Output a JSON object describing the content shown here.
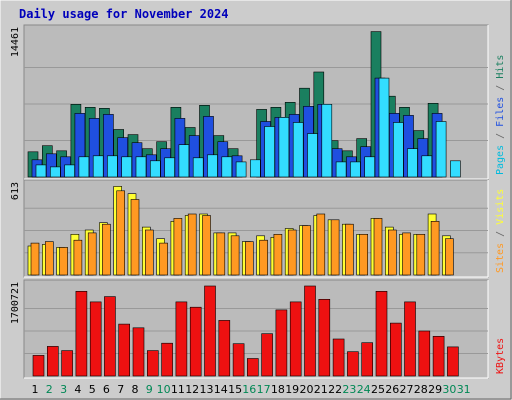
{
  "title": "Daily usage for November 2024",
  "colors": {
    "background": "#cccccc",
    "panel": "#bbbbbb",
    "hits": "#1a7f5f",
    "files": "#1f4fe0",
    "pages": "#33ddff",
    "visits": "#ffff33",
    "sites": "#ff9922",
    "kbytes": "#ee1111",
    "weekday_label": "#000000",
    "weekend_label": "#008855"
  },
  "chart_data": [
    {
      "type": "bar",
      "panel": "top",
      "max_label": "14461",
      "ylim": [
        0,
        14461
      ],
      "legend": [
        {
          "text": "Pages",
          "color": "#00bbdd"
        },
        {
          "text": "/",
          "color": "#666666"
        },
        {
          "text": "Files",
          "color": "#1f4fe0"
        },
        {
          "text": "/",
          "color": "#666666"
        },
        {
          "text": "Hits",
          "color": "#1a7f5f"
        }
      ],
      "categories": [
        "1",
        "2",
        "3",
        "4",
        "5",
        "6",
        "7",
        "8",
        "9",
        "10",
        "11",
        "12",
        "13",
        "14",
        "15",
        "16",
        "17",
        "18",
        "19",
        "20",
        "21",
        "22",
        "23",
        "24",
        "25",
        "26",
        "27",
        "28",
        "29",
        "30",
        "31"
      ],
      "weekend_days": [
        "2",
        "3",
        "9",
        "10",
        "16",
        "17",
        "23",
        "24",
        "30",
        "31"
      ],
      "series": [
        {
          "name": "Hits",
          "values": [
            2500,
            3100,
            2600,
            7200,
            6900,
            6800,
            4700,
            4200,
            2800,
            3500,
            6900,
            4900,
            7100,
            4100,
            2800,
            0,
            6700,
            6900,
            7400,
            8800,
            10400,
            3600,
            2600,
            3800,
            14400,
            8000,
            6900,
            4600,
            7300,
            0,
            0
          ]
        },
        {
          "name": "Files",
          "values": [
            1700,
            2300,
            2000,
            6300,
            5800,
            6200,
            3900,
            3400,
            2200,
            2800,
            5800,
            4100,
            6000,
            3500,
            2100,
            0,
            5500,
            5900,
            6200,
            7000,
            7200,
            2800,
            2000,
            3000,
            9800,
            6300,
            6100,
            3800,
            6300,
            0,
            0
          ]
        },
        {
          "name": "Pages",
          "values": [
            1200,
            1000,
            1200,
            2000,
            2100,
            2100,
            2000,
            2000,
            1600,
            1900,
            3200,
            1900,
            2200,
            2000,
            1500,
            1700,
            5000,
            5900,
            5400,
            4300,
            7200,
            1500,
            1500,
            2000,
            9800,
            5400,
            2800,
            2100,
            5500,
            1600,
            0
          ]
        }
      ]
    },
    {
      "type": "bar",
      "panel": "middle",
      "max_label": "613",
      "ylim": [
        0,
        613
      ],
      "legend": [
        {
          "text": "Sites",
          "color": "#ff9922"
        },
        {
          "text": "/",
          "color": "#666666"
        },
        {
          "text": "Visits",
          "color": "#ffff33"
        }
      ],
      "categories": [
        "1",
        "2",
        "3",
        "4",
        "5",
        "6",
        "7",
        "8",
        "9",
        "10",
        "11",
        "12",
        "13",
        "14",
        "15",
        "16",
        "17",
        "18",
        "19",
        "20",
        "21",
        "22",
        "23",
        "24",
        "25",
        "26",
        "27",
        "28",
        "29",
        "30",
        "31"
      ],
      "series": [
        {
          "name": "Visits",
          "values": [
            200,
            210,
            190,
            280,
            310,
            360,
            610,
            560,
            330,
            250,
            370,
            410,
            420,
            290,
            290,
            230,
            270,
            260,
            320,
            340,
            410,
            380,
            350,
            280,
            390,
            330,
            280,
            280,
            420,
            270,
            0
          ]
        },
        {
          "name": "Sites",
          "values": [
            220,
            230,
            190,
            240,
            290,
            350,
            580,
            520,
            310,
            220,
            390,
            420,
            410,
            290,
            270,
            230,
            240,
            280,
            310,
            340,
            420,
            380,
            350,
            280,
            390,
            310,
            290,
            280,
            370,
            250,
            0
          ]
        }
      ]
    },
    {
      "type": "bar",
      "panel": "bottom",
      "max_label": "1700721",
      "ylim": [
        0,
        1700721
      ],
      "legend": [
        {
          "text": "KBytes",
          "color": "#ee1111"
        }
      ],
      "categories": [
        "1",
        "2",
        "3",
        "4",
        "5",
        "6",
        "7",
        "8",
        "9",
        "10",
        "11",
        "12",
        "13",
        "14",
        "15",
        "16",
        "17",
        "18",
        "19",
        "20",
        "21",
        "22",
        "23",
        "24",
        "25",
        "26",
        "27",
        "28",
        "29",
        "30",
        "31"
      ],
      "series": [
        {
          "name": "KBytes",
          "values": [
            390000,
            560000,
            480000,
            1600000,
            1400000,
            1500000,
            980000,
            910000,
            480000,
            620000,
            1400000,
            1300000,
            1700000,
            1050000,
            610000,
            330000,
            800000,
            1250000,
            1400000,
            1700000,
            1450000,
            700000,
            460000,
            630000,
            1600000,
            1000000,
            1400000,
            850000,
            750000,
            550000,
            0
          ]
        }
      ]
    }
  ]
}
